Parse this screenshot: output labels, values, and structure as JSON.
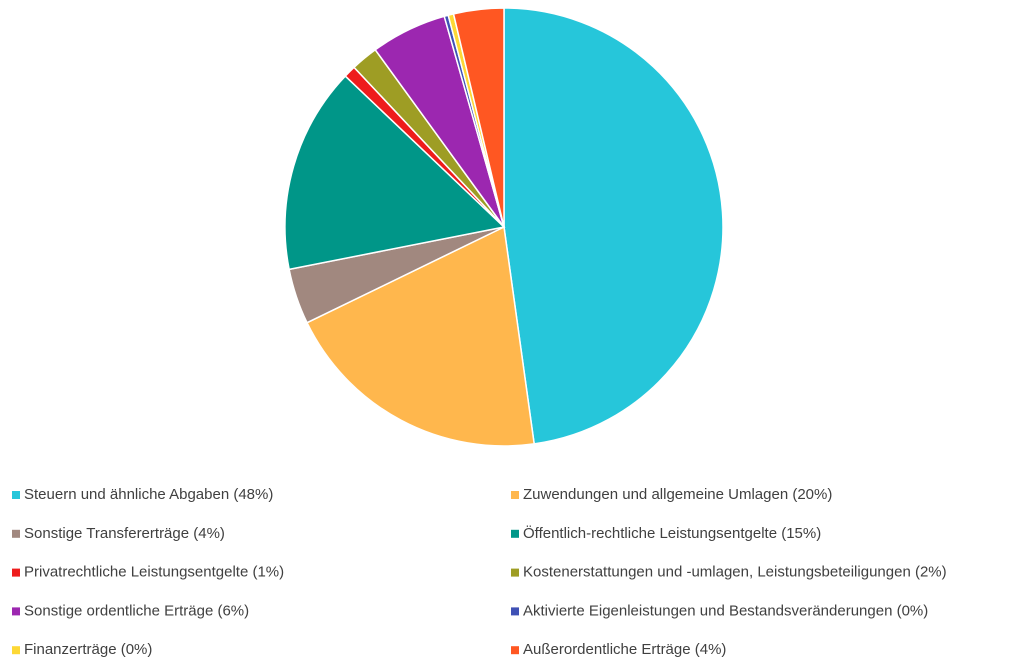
{
  "chart_data": {
    "type": "pie",
    "categories": [
      "Steuern und ähnliche Abgaben (48%)",
      "Zuwendungen und allgemeine Umlagen (20%)",
      "Sonstige Transfererträge (4%)",
      "Öffentlich-rechtliche Leistungsentgelte (15%)",
      "Privatrechtliche Leistungsentgelte (1%)",
      "Kostenerstattungen und -umlagen, Leistungsbeteiligungen (2%)",
      "Sonstige ordentliche Erträge (6%)",
      "Aktivierte Eigenleistungen und Bestandsveränderungen (0%)",
      "Finanzerträge (0%)",
      "Außerordentliche Erträge (4%)"
    ],
    "values": [
      47.8,
      20,
      4.1,
      15.2,
      0.9,
      2,
      5.6,
      0.3,
      0.4,
      3.7
    ],
    "colors": [
      "#26c6da",
      "#ffb74d",
      "#a1887f",
      "#009688",
      "#ee1c1c",
      "#9e9d24",
      "#9c27b0",
      "#3f51b5",
      "#fdd835",
      "#ff5722"
    ],
    "legend": "bottom"
  }
}
